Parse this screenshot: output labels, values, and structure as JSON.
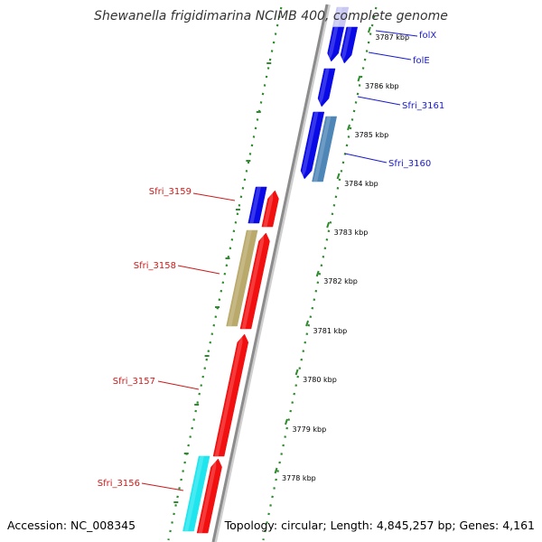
{
  "title": "Shewanella frigidimarina NCIMB 400, complete genome",
  "footer": {
    "accession": "Accession: NC_008345",
    "topology": "Topology: circular; Length: 4,845,257 bp; Genes: 4,161"
  },
  "colors": {
    "background": "#ffffff",
    "backbone": "#8c8c8c",
    "tick_green": "#2e8b2e",
    "forward_label": "#1a1acc",
    "reverse_label": "#cc1a1a",
    "blue_gene": "#0a0ae6",
    "red_gene": "#f20f0f",
    "lightblue_gene": "#c8c8f2",
    "steelblue_gene": "#4f86b8",
    "khaki_gene": "#b9a96a",
    "cyan_gene": "#1fe6ee"
  },
  "ticks": [
    {
      "label": "3787 kbp"
    },
    {
      "label": "3786 kbp"
    },
    {
      "label": "3785 kbp"
    },
    {
      "label": "3784 kbp"
    },
    {
      "label": "3783 kbp"
    },
    {
      "label": "3782 kbp"
    },
    {
      "label": "3781 kbp"
    },
    {
      "label": "3780 kbp"
    },
    {
      "label": "3779 kbp"
    },
    {
      "label": "3778 kbp"
    }
  ],
  "gene_labels": {
    "forward": [
      {
        "name": "folX"
      },
      {
        "name": "folE"
      },
      {
        "name": "Sfri_3161"
      },
      {
        "name": "Sfri_3160"
      }
    ],
    "reverse": [
      {
        "name": "Sfri_3159"
      },
      {
        "name": "Sfri_3158"
      },
      {
        "name": "Sfri_3157"
      },
      {
        "name": "Sfri_3156"
      }
    ]
  },
  "genes": [
    {
      "strand": "outer",
      "color": "lightblue_gene"
    },
    {
      "strand": "outer",
      "color": "blue_gene"
    },
    {
      "strand": "outer",
      "color": "blue_gene"
    },
    {
      "strand": "outer",
      "color": "blue_gene"
    },
    {
      "strand": "outer",
      "color": "blue_gene"
    },
    {
      "strand": "outer",
      "color": "steelblue_gene"
    },
    {
      "strand": "inner",
      "color": "blue_gene"
    },
    {
      "strand": "inner",
      "color": "red_gene"
    },
    {
      "strand": "inner",
      "color": "khaki_gene"
    },
    {
      "strand": "inner",
      "color": "red_gene"
    },
    {
      "strand": "inner",
      "color": "red_gene"
    },
    {
      "strand": "inner",
      "color": "cyan_gene"
    },
    {
      "strand": "inner",
      "color": "red_gene"
    }
  ]
}
